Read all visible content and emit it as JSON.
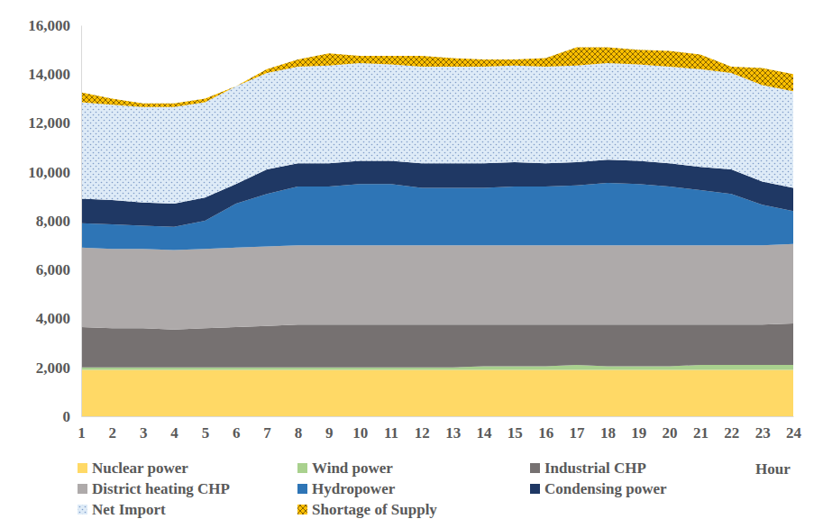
{
  "chart_data": {
    "type": "area",
    "stacked": true,
    "x_label": "Hour",
    "categories": [
      "1",
      "2",
      "3",
      "4",
      "5",
      "6",
      "7",
      "8",
      "9",
      "10",
      "11",
      "12",
      "13",
      "14",
      "15",
      "16",
      "17",
      "18",
      "19",
      "20",
      "21",
      "22",
      "23",
      "24"
    ],
    "ylim": [
      0,
      16000
    ],
    "yticks": [
      0,
      {
        "value": 2000,
        "label": "2,000"
      },
      {
        "value": 4000,
        "label": "4,000"
      },
      {
        "value": 6000,
        "label": "6,000"
      },
      {
        "value": 8000,
        "label": "8,000"
      },
      {
        "value": 10000,
        "label": "10,000"
      },
      {
        "value": 12000,
        "label": "12,000"
      },
      {
        "value": 14000,
        "label": "14,000"
      },
      {
        "value": 16000,
        "label": "16,000"
      }
    ],
    "series": [
      {
        "name": "Nuclear power",
        "color": "#ffd966",
        "values": [
          1900,
          1900,
          1900,
          1900,
          1900,
          1900,
          1900,
          1900,
          1900,
          1900,
          1900,
          1900,
          1900,
          1900,
          1900,
          1900,
          1900,
          1900,
          1900,
          1900,
          1900,
          1900,
          1900,
          1900
        ]
      },
      {
        "name": "Wind power",
        "color": "#a9d18e",
        "values": [
          100,
          100,
          100,
          100,
          100,
          100,
          100,
          100,
          100,
          100,
          100,
          100,
          100,
          150,
          150,
          150,
          200,
          150,
          150,
          150,
          200,
          200,
          200,
          200
        ]
      },
      {
        "name": "Industrial CHP",
        "color": "#767171",
        "values": [
          1650,
          1600,
          1600,
          1550,
          1600,
          1650,
          1700,
          1750,
          1750,
          1750,
          1750,
          1750,
          1750,
          1700,
          1700,
          1700,
          1650,
          1700,
          1700,
          1700,
          1650,
          1650,
          1650,
          1700
        ]
      },
      {
        "name": "District heating CHP",
        "color": "#aeaaaa",
        "values": [
          3250,
          3250,
          3250,
          3250,
          3250,
          3250,
          3250,
          3250,
          3250,
          3250,
          3250,
          3250,
          3250,
          3250,
          3250,
          3250,
          3250,
          3250,
          3250,
          3250,
          3250,
          3250,
          3250,
          3250
        ]
      },
      {
        "name": "Hydropower",
        "color": "#2e75b6",
        "values": [
          1000,
          1000,
          950,
          950,
          1150,
          1800,
          2150,
          2400,
          2400,
          2500,
          2500,
          2350,
          2350,
          2350,
          2400,
          2400,
          2450,
          2550,
          2500,
          2400,
          2250,
          2100,
          1650,
          1350
        ]
      },
      {
        "name": "Condensing power",
        "color": "#1f3864",
        "values": [
          1000,
          1000,
          950,
          950,
          950,
          800,
          1000,
          950,
          950,
          950,
          950,
          1000,
          1000,
          1000,
          1000,
          950,
          950,
          950,
          950,
          950,
          950,
          1000,
          950,
          950
        ]
      },
      {
        "name": "Net Import",
        "color": "#deebf7",
        "values": [
          3950,
          3900,
          3900,
          3950,
          3900,
          4000,
          3950,
          3950,
          4000,
          4000,
          3950,
          3950,
          3950,
          3950,
          3950,
          3950,
          3950,
          3950,
          3950,
          3950,
          4000,
          3950,
          3950,
          3950
        ]
      },
      {
        "name": "Shortage of Supply",
        "color": "#ffc000",
        "values": [
          400,
          250,
          150,
          150,
          150,
          0,
          150,
          300,
          500,
          300,
          350,
          450,
          350,
          300,
          250,
          350,
          750,
          650,
          600,
          650,
          600,
          250,
          700,
          700
        ]
      }
    ]
  }
}
